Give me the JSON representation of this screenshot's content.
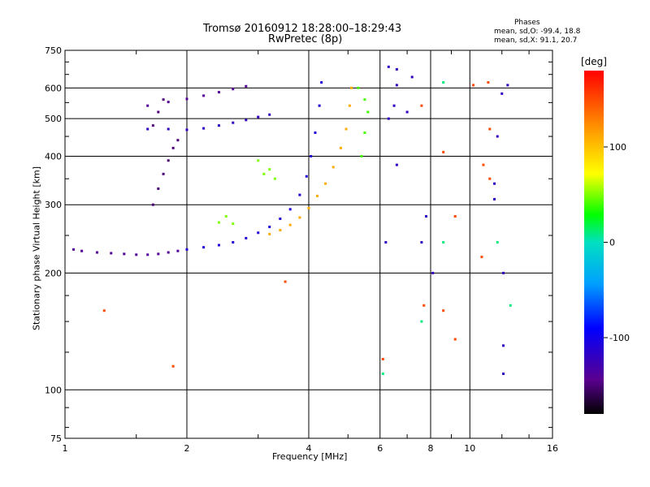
{
  "chart_data": {
    "type": "scatter",
    "title": "Tromsø 20160912 18:28:00–18:29:43",
    "subtitle": "RwPretec (8p)",
    "xlabel": "Frequency [MHz]",
    "ylabel": "Stationary phase Virtual Height [km]",
    "x_scale": "log",
    "y_scale": "log",
    "xlim": [
      1,
      16
    ],
    "ylim": [
      75,
      750
    ],
    "x_ticks": [
      "1",
      "2",
      "4",
      "6",
      "8",
      "10",
      "16"
    ],
    "y_ticks": [
      "75",
      "100",
      "200",
      "300",
      "400",
      "500",
      "600",
      "750"
    ],
    "grid": true,
    "phases": {
      "heading": "Phases",
      "o_mode": "mean, sd,O: -99.4, 18.8",
      "x_mode": "mean, sd,X:  91.1, 20.7"
    },
    "colorbar": {
      "unit": "[deg]",
      "range": [
        -180,
        180
      ],
      "ticks": [
        "100",
        "0",
        "-100"
      ]
    },
    "traces": [
      {
        "mode": "O",
        "phase": -140,
        "points": [
          [
            1.05,
            230
          ],
          [
            1.1,
            228
          ],
          [
            1.2,
            226
          ],
          [
            1.3,
            225
          ],
          [
            1.4,
            224
          ],
          [
            1.5,
            223
          ],
          [
            1.6,
            223
          ],
          [
            1.7,
            224
          ],
          [
            1.8,
            226
          ],
          [
            1.9,
            228
          ]
        ]
      },
      {
        "mode": "O",
        "phase": -110,
        "points": [
          [
            2.0,
            230
          ],
          [
            2.2,
            233
          ],
          [
            2.4,
            236
          ],
          [
            2.6,
            240
          ],
          [
            2.8,
            246
          ],
          [
            3.0,
            254
          ],
          [
            3.2,
            263
          ],
          [
            3.4,
            276
          ],
          [
            3.6,
            292
          ],
          [
            3.8,
            318
          ],
          [
            3.95,
            355
          ],
          [
            4.05,
            400
          ],
          [
            4.15,
            460
          ],
          [
            4.25,
            540
          ],
          [
            4.3,
            620
          ]
        ]
      },
      {
        "mode": "O",
        "phase": -120,
        "points": [
          [
            1.6,
            470
          ],
          [
            1.8,
            470
          ],
          [
            2.0,
            468
          ],
          [
            2.2,
            472
          ],
          [
            2.4,
            480
          ],
          [
            2.6,
            488
          ],
          [
            2.8,
            496
          ],
          [
            3.0,
            505
          ],
          [
            3.2,
            512
          ]
        ]
      },
      {
        "mode": "O",
        "phase": -140,
        "points": [
          [
            1.6,
            540
          ],
          [
            1.8,
            552
          ],
          [
            2.0,
            562
          ],
          [
            2.2,
            573
          ],
          [
            2.4,
            585
          ],
          [
            2.6,
            596
          ],
          [
            2.8,
            606
          ]
        ]
      },
      {
        "mode": "O",
        "phase": -150,
        "points": [
          [
            1.65,
            300
          ],
          [
            1.7,
            330
          ],
          [
            1.75,
            360
          ],
          [
            1.8,
            390
          ],
          [
            1.85,
            420
          ],
          [
            1.9,
            440
          ],
          [
            1.7,
            520
          ],
          [
            1.75,
            560
          ],
          [
            1.65,
            480
          ]
        ]
      },
      {
        "mode": "X",
        "phase": 110,
        "points": [
          [
            3.2,
            252
          ],
          [
            3.4,
            258
          ],
          [
            3.6,
            266
          ],
          [
            3.8,
            278
          ],
          [
            4.0,
            294
          ],
          [
            4.2,
            316
          ],
          [
            4.4,
            340
          ],
          [
            4.6,
            375
          ],
          [
            4.8,
            420
          ],
          [
            4.95,
            470
          ],
          [
            5.05,
            540
          ],
          [
            5.1,
            600
          ]
        ]
      },
      {
        "mode": "X",
        "phase": 50,
        "points": [
          [
            2.4,
            270
          ],
          [
            2.5,
            280
          ],
          [
            2.6,
            268
          ],
          [
            3.1,
            360
          ],
          [
            3.2,
            370
          ],
          [
            3.3,
            350
          ],
          [
            3.0,
            390
          ]
        ]
      },
      {
        "mode": "X",
        "phase": 40,
        "points": [
          [
            5.4,
            400
          ],
          [
            5.5,
            460
          ],
          [
            5.6,
            520
          ],
          [
            5.5,
            560
          ],
          [
            5.3,
            600
          ]
        ]
      }
    ],
    "scattered": [
      {
        "phase": -120,
        "points": [
          [
            6.3,
            680
          ],
          [
            6.6,
            670
          ],
          [
            6.6,
            610
          ],
          [
            7.2,
            640
          ],
          [
            6.5,
            540
          ],
          [
            6.3,
            500
          ],
          [
            7.0,
            520
          ],
          [
            6.6,
            380
          ],
          [
            6.2,
            240
          ],
          [
            7.6,
            240
          ],
          [
            7.8,
            280
          ],
          [
            8.1,
            200
          ],
          [
            12.1,
            200
          ],
          [
            12.1,
            130
          ],
          [
            12.1,
            110
          ],
          [
            11.7,
            450
          ],
          [
            11.5,
            340
          ],
          [
            11.5,
            310
          ],
          [
            12.0,
            580
          ],
          [
            12.4,
            610
          ]
        ]
      },
      {
        "phase": 150,
        "points": [
          [
            7.6,
            540
          ],
          [
            10.2,
            610
          ],
          [
            11.2,
            470
          ],
          [
            10.8,
            380
          ],
          [
            11.2,
            350
          ],
          [
            8.6,
            410
          ],
          [
            9.2,
            280
          ],
          [
            11.1,
            620
          ],
          [
            10.7,
            220
          ],
          [
            7.7,
            165
          ],
          [
            8.6,
            160
          ],
          [
            9.2,
            135
          ],
          [
            1.25,
            160
          ],
          [
            1.85,
            115
          ],
          [
            3.5,
            190
          ],
          [
            6.1,
            120
          ]
        ]
      },
      {
        "phase": 10,
        "points": [
          [
            8.6,
            240
          ],
          [
            7.6,
            150
          ],
          [
            11.7,
            240
          ],
          [
            12.6,
            165
          ],
          [
            6.1,
            110
          ],
          [
            8.6,
            620
          ]
        ]
      }
    ]
  }
}
